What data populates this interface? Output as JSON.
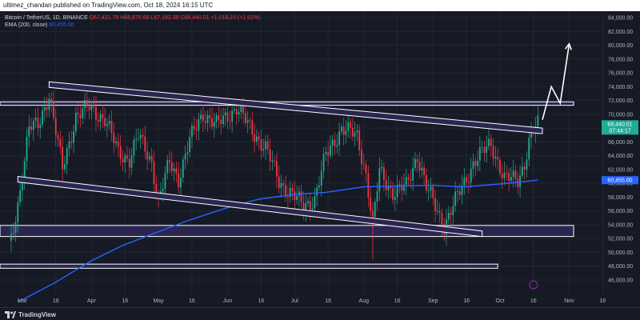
{
  "header": {
    "published_by": "ultimez_chandan published on TradingView.com, Oct 18, 2024 16:15 UTC"
  },
  "legend": {
    "symbol": "Bitcoin / TetherUS, 1D, BINANCE",
    "ohlc": "O67,421.78 H68,870.68 L67,192.38 C68,440.01 +1,018.23 (+1.51%)",
    "ema": "EMA (200, close)",
    "ema_value": "60,455.00"
  },
  "brand": {
    "label": "TradingView"
  },
  "colors": {
    "bull": "#22ab94",
    "bear": "#f23645",
    "ema": "#2962ff",
    "zone_fill": "#2b2650",
    "line": "#ffffff",
    "grid": "#22262f",
    "bg": "#161a25"
  },
  "chart_data": {
    "type": "candlestick",
    "symbol": "BTCUSDT",
    "timeframe": "1D",
    "exchange": "BINANCE",
    "y_axis_ticks": [
      "84,000.00",
      "82,000.00",
      "80,000.00",
      "78,000.00",
      "76,000.00",
      "74,000.00",
      "72,000.00",
      "70,000.00",
      "68,000.00",
      "66,000.00",
      "64,000.00",
      "62,000.00",
      "60,000.00",
      "58,000.00",
      "56,000.00",
      "54,000.00",
      "52,000.00",
      "50,000.00",
      "48,000.00",
      "46,000.00"
    ],
    "x_axis_ticks": [
      "Mar",
      "16",
      "Apr",
      "16",
      "May",
      "16",
      "Jun",
      "16",
      "Jul",
      "16",
      "Aug",
      "16",
      "Sep",
      "16",
      "Oct",
      "16",
      "Nov",
      "16"
    ],
    "ylim": [
      44800,
      85500
    ],
    "price_labels": {
      "current": "68,440.01",
      "countdown": "07:44:17",
      "ema": "60,455.00"
    },
    "close_series": [
      {
        "date": "2024-02-25",
        "value": 51700
      },
      {
        "date": "2024-02-28",
        "value": 57000
      },
      {
        "date": "2024-03-04",
        "value": 68000
      },
      {
        "date": "2024-03-08",
        "value": 68300
      },
      {
        "date": "2024-03-13",
        "value": 73000
      },
      {
        "date": "2024-03-19",
        "value": 62000
      },
      {
        "date": "2024-03-25",
        "value": 69800
      },
      {
        "date": "2024-03-31",
        "value": 71000
      },
      {
        "date": "2024-04-07",
        "value": 69300
      },
      {
        "date": "2024-04-13",
        "value": 64500
      },
      {
        "date": "2024-04-18",
        "value": 63500
      },
      {
        "date": "2024-04-22",
        "value": 66800
      },
      {
        "date": "2024-04-28",
        "value": 63200
      },
      {
        "date": "2024-05-01",
        "value": 57300
      },
      {
        "date": "2024-05-06",
        "value": 63100
      },
      {
        "date": "2024-05-10",
        "value": 60700
      },
      {
        "date": "2024-05-15",
        "value": 66200
      },
      {
        "date": "2024-05-21",
        "value": 70200
      },
      {
        "date": "2024-05-27",
        "value": 68400
      },
      {
        "date": "2024-06-05",
        "value": 71000
      },
      {
        "date": "2024-06-12",
        "value": 67600
      },
      {
        "date": "2024-06-18",
        "value": 65100
      },
      {
        "date": "2024-06-24",
        "value": 60300
      },
      {
        "date": "2024-07-05",
        "value": 56700
      },
      {
        "date": "2024-07-10",
        "value": 57800
      },
      {
        "date": "2024-07-15",
        "value": 64000
      },
      {
        "date": "2024-07-22",
        "value": 68000
      },
      {
        "date": "2024-07-29",
        "value": 66800
      },
      {
        "date": "2024-08-02",
        "value": 61400
      },
      {
        "date": "2024-08-05",
        "value": 54000
      },
      {
        "date": "2024-08-08",
        "value": 61700
      },
      {
        "date": "2024-08-14",
        "value": 58700
      },
      {
        "date": "2024-08-20",
        "value": 59500
      },
      {
        "date": "2024-08-25",
        "value": 64200
      },
      {
        "date": "2024-08-29",
        "value": 59400
      },
      {
        "date": "2024-09-06",
        "value": 53900
      },
      {
        "date": "2024-09-12",
        "value": 58100
      },
      {
        "date": "2024-09-19",
        "value": 62900
      },
      {
        "date": "2024-09-27",
        "value": 65800
      },
      {
        "date": "2024-10-03",
        "value": 60600
      },
      {
        "date": "2024-10-09",
        "value": 60600
      },
      {
        "date": "2024-10-12",
        "value": 63000
      },
      {
        "date": "2024-10-14",
        "value": 66000
      },
      {
        "date": "2024-10-16",
        "value": 67600
      },
      {
        "date": "2024-10-18",
        "value": 68440
      }
    ],
    "ema_200": [
      {
        "date": "2024-02-28",
        "value": 42800
      },
      {
        "date": "2024-03-15",
        "value": 45500
      },
      {
        "date": "2024-04-01",
        "value": 48800
      },
      {
        "date": "2024-04-15",
        "value": 51000
      },
      {
        "date": "2024-05-01",
        "value": 53000
      },
      {
        "date": "2024-05-15",
        "value": 54700
      },
      {
        "date": "2024-06-01",
        "value": 56500
      },
      {
        "date": "2024-06-15",
        "value": 57700
      },
      {
        "date": "2024-07-01",
        "value": 58400
      },
      {
        "date": "2024-07-15",
        "value": 58700
      },
      {
        "date": "2024-08-01",
        "value": 59500
      },
      {
        "date": "2024-08-15",
        "value": 59600
      },
      {
        "date": "2024-09-01",
        "value": 59700
      },
      {
        "date": "2024-09-15",
        "value": 59500
      },
      {
        "date": "2024-10-01",
        "value": 59900
      },
      {
        "date": "2024-10-18",
        "value": 60455
      }
    ],
    "channel_upper": [
      {
        "date": "2024-03-13",
        "value": 74700
      },
      {
        "date": "2024-10-20",
        "value": 68000
      }
    ],
    "channel_lower": [
      {
        "date": "2024-02-28",
        "value": 61000
      },
      {
        "date": "2024-09-23",
        "value": 53100
      }
    ],
    "zones": [
      {
        "from_date": "2024-02-20",
        "to_date": "2024-11-03",
        "low": 71300,
        "high": 71800
      },
      {
        "from_date": "2024-02-20",
        "to_date": "2024-11-03",
        "low": 52300,
        "high": 53900
      },
      {
        "from_date": "2024-02-20",
        "to_date": "2024-09-30",
        "low": 47700,
        "high": 48300
      }
    ],
    "projection_path": [
      {
        "date": "2024-10-20",
        "value": 69200
      },
      {
        "date": "2024-10-24",
        "value": 74000
      },
      {
        "date": "2024-10-28",
        "value": 71600
      },
      {
        "date": "2024-11-01",
        "value": 80200
      }
    ]
  }
}
